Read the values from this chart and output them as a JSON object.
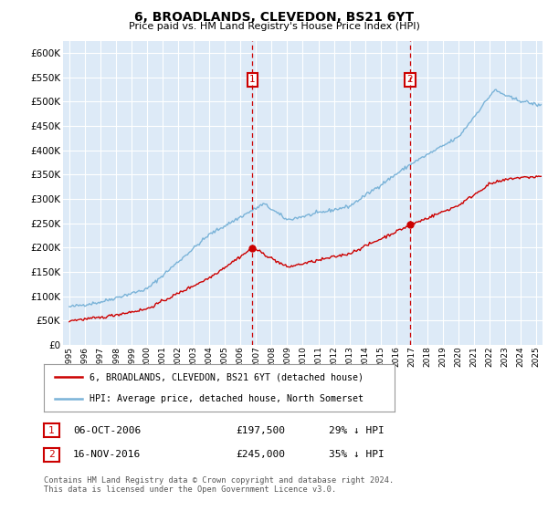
{
  "title": "6, BROADLANDS, CLEVEDON, BS21 6YT",
  "subtitle": "Price paid vs. HM Land Registry's House Price Index (HPI)",
  "hpi_color": "#7ab3d8",
  "price_color": "#cc0000",
  "vline_color": "#cc0000",
  "bg_color": "#ddeaf7",
  "grid_color": "#ffffff",
  "ylim": [
    0,
    625000
  ],
  "yticks": [
    0,
    50000,
    100000,
    150000,
    200000,
    250000,
    300000,
    350000,
    400000,
    450000,
    500000,
    550000,
    600000
  ],
  "xlim_start": 1994.6,
  "xlim_end": 2025.4,
  "transaction1_x": 2006.77,
  "transaction1_price": 197500,
  "transaction2_x": 2016.88,
  "transaction2_price": 245000,
  "legend_line1": "6, BROADLANDS, CLEVEDON, BS21 6YT (detached house)",
  "legend_line2": "HPI: Average price, detached house, North Somerset",
  "footer": "Contains HM Land Registry data © Crown copyright and database right 2024.\nThis data is licensed under the Open Government Licence v3.0.",
  "table_row1": [
    "1",
    "06-OCT-2006",
    "£197,500",
    "29% ↓ HPI"
  ],
  "table_row2": [
    "2",
    "16-NOV-2016",
    "£245,000",
    "35% ↓ HPI"
  ]
}
